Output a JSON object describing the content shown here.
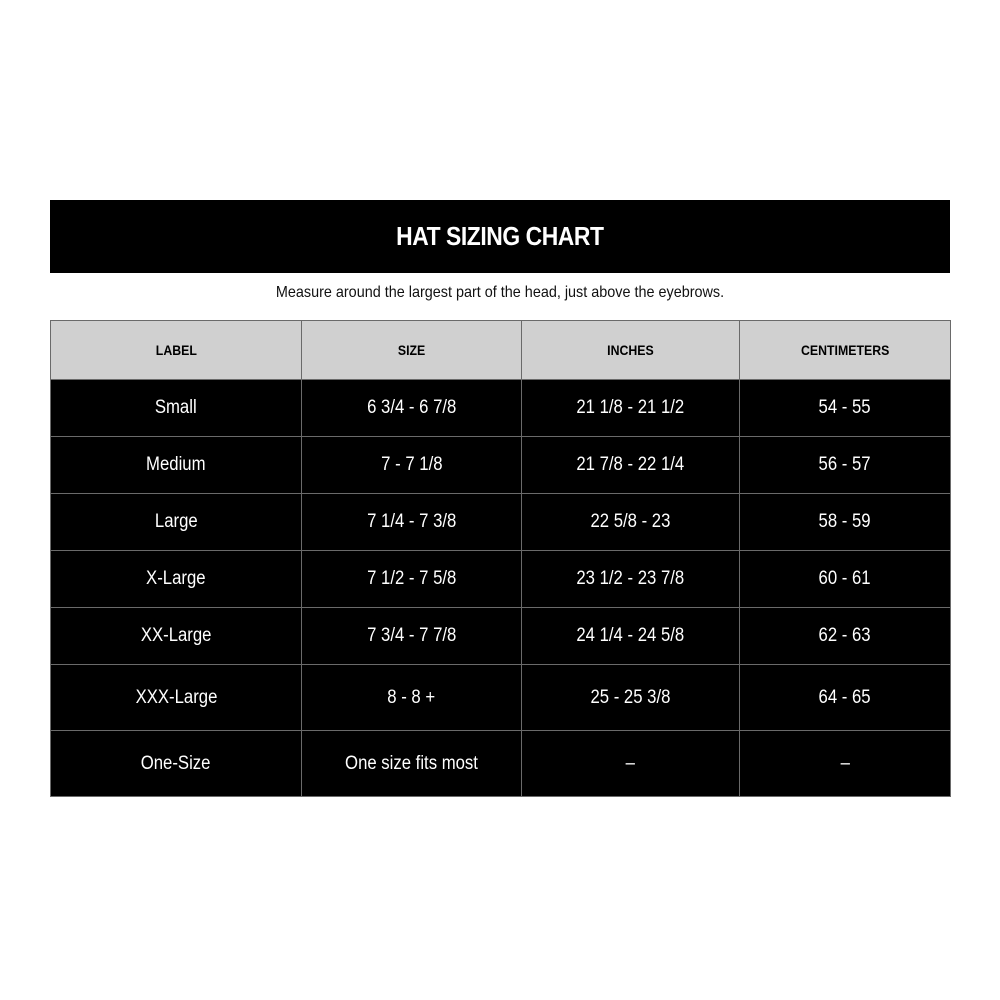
{
  "title": "HAT SIZING CHART",
  "subtitle": "Measure around the largest part of the head, just above the eyebrows.",
  "columns": [
    "LABEL",
    "SIZE",
    "INCHES",
    "CENTIMETERS"
  ],
  "rows": [
    [
      "Small",
      "6 3/4 - 6 7/8",
      "21 1/8 - 21 1/2",
      "54 - 55"
    ],
    [
      "Medium",
      "7 - 7 1/8",
      "21 7/8 - 22 1/4",
      "56 - 57"
    ],
    [
      "Large",
      "7 1/4 - 7 3/8",
      "22 5/8 - 23",
      "58 - 59"
    ],
    [
      "X-Large",
      "7 1/2 - 7 5/8",
      "23 1/2 - 23 7/8",
      "60 - 61"
    ],
    [
      "XX-Large",
      "7 3/4 - 7 7/8",
      "24 1/4 - 24 5/8",
      "62 - 63"
    ],
    [
      "XXX-Large",
      "8 - 8 +",
      "25 - 25 3/8",
      "64 - 65"
    ],
    [
      "One-Size",
      "One size fits most",
      "–",
      "–"
    ]
  ],
  "colors": {
    "header_bg": "#d0d0d0",
    "cell_bg": "#000000",
    "grid": "#6a6a6a"
  }
}
